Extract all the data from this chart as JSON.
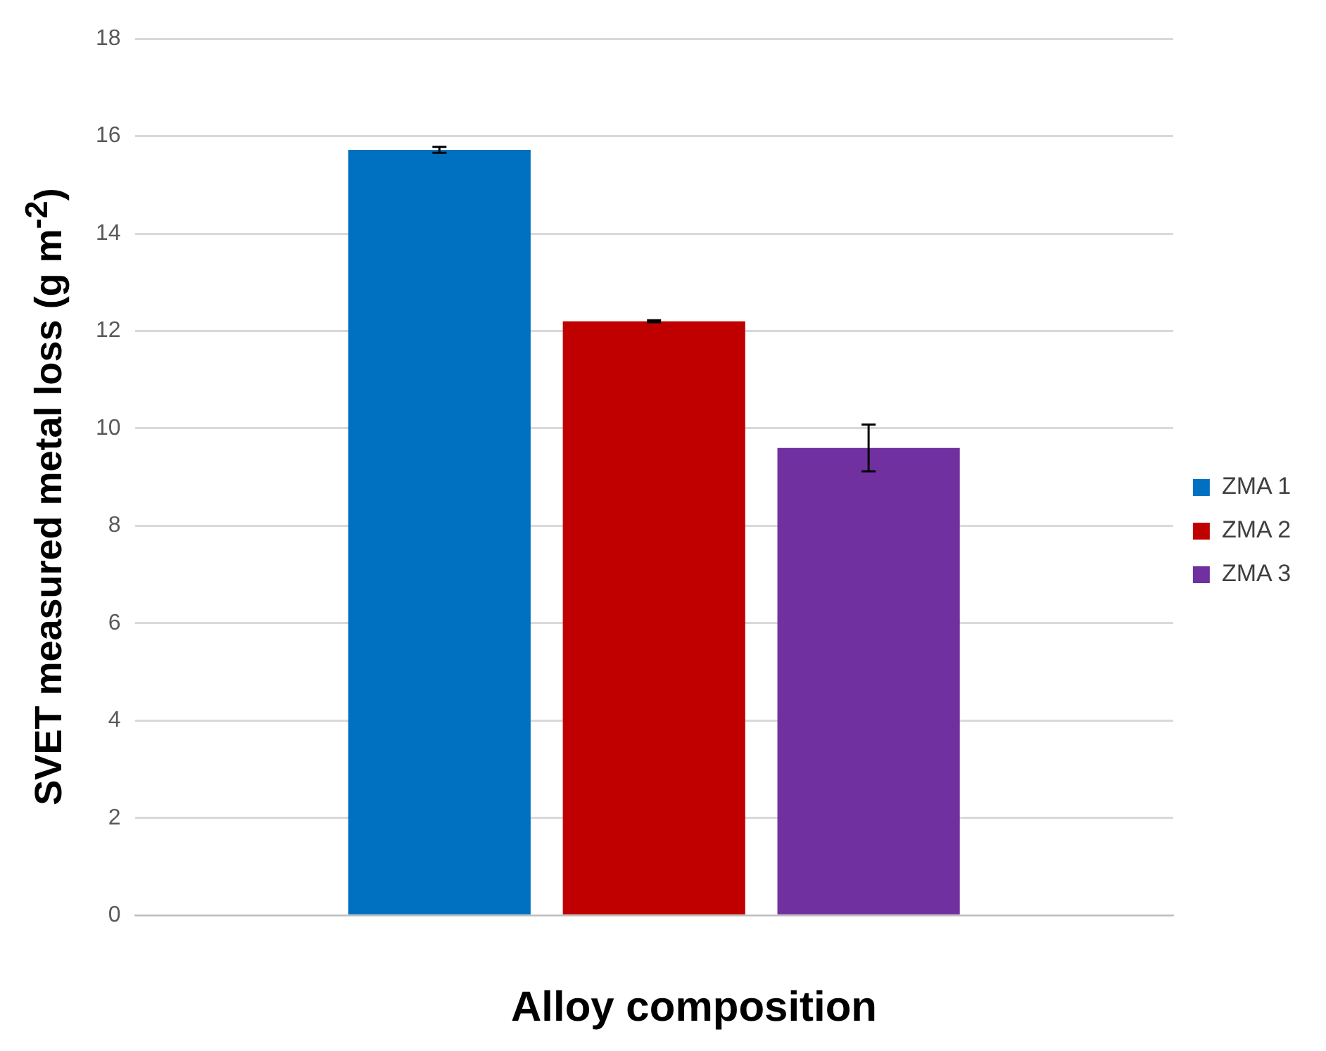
{
  "chart_data": {
    "type": "bar",
    "xlabel": "Alloy composition",
    "ylabel": "SVET measured metal loss (g m$^{-2}$)",
    "categories": [
      null
    ],
    "series": [
      {
        "name": "ZMA 1",
        "color": "#0070c0",
        "values": [
          15.72
        ],
        "errors": [
          0.06
        ]
      },
      {
        "name": "ZMA 2",
        "color": "#c00000",
        "values": [
          12.2
        ],
        "errors": [
          0.02
        ]
      },
      {
        "name": "ZMA 3",
        "color": "#7030a0",
        "values": [
          9.6
        ],
        "errors": [
          0.48
        ]
      }
    ],
    "ylim": [
      0,
      18
    ],
    "yticks": [
      0,
      2,
      4,
      6,
      8,
      10,
      12,
      14,
      16,
      18
    ],
    "grid": "y",
    "legend": "right"
  }
}
